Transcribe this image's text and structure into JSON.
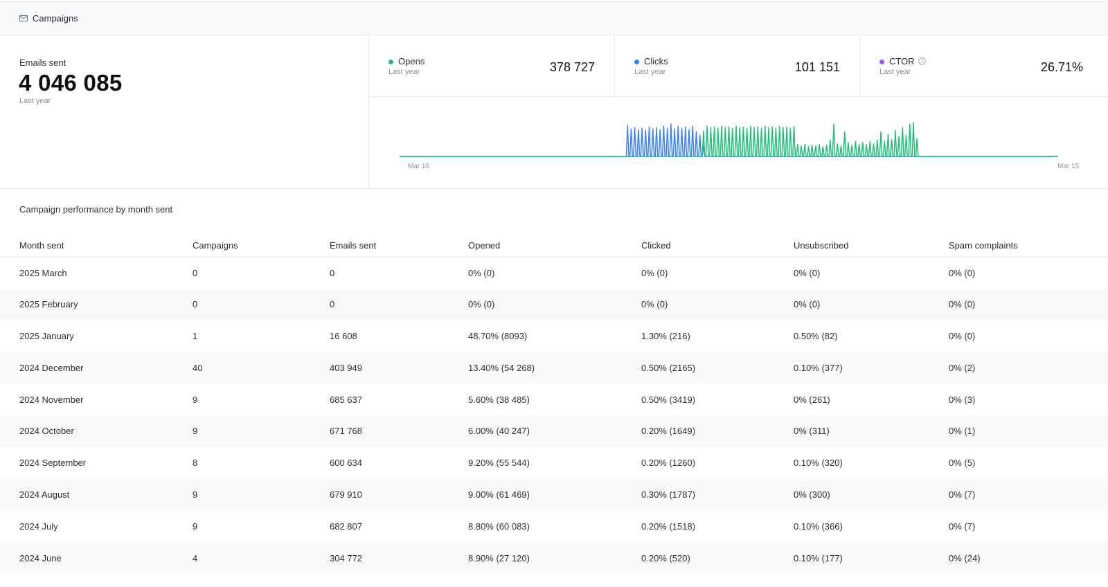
{
  "header": {
    "title": "Campaigns",
    "icon": "mail-icon"
  },
  "emails_sent": {
    "label": "Emails sent",
    "value": "4 046 085",
    "period": "Last year"
  },
  "metrics": [
    {
      "name": "Opens",
      "period": "Last year",
      "value": "378 727",
      "color": "#22c07a"
    },
    {
      "name": "Clicks",
      "period": "Last year",
      "value": "101 151",
      "color": "#3b82f6"
    },
    {
      "name": "CTOR",
      "period": "Last year",
      "value": "26.71%",
      "color": "#a855f7",
      "icon": "info-icon"
    }
  ],
  "chart_data": {
    "type": "line",
    "x_start_label": "Mar 16",
    "x_end_label": "Mar 15",
    "points_per_series": 365,
    "series": [
      {
        "name": "Clicks",
        "color": "#3b82f6",
        "spikes": [
          [
            126,
            0.88
          ],
          [
            128,
            0.78
          ],
          [
            130,
            0.82
          ],
          [
            132,
            0.76
          ],
          [
            134,
            0.8
          ],
          [
            136,
            0.74
          ],
          [
            138,
            0.84
          ],
          [
            140,
            0.78
          ],
          [
            142,
            0.82
          ],
          [
            144,
            0.76
          ],
          [
            146,
            0.86
          ],
          [
            148,
            0.8
          ],
          [
            150,
            0.92
          ],
          [
            152,
            0.78
          ],
          [
            154,
            0.86
          ],
          [
            156,
            0.8
          ],
          [
            158,
            0.84
          ],
          [
            160,
            0.76
          ],
          [
            162,
            0.86
          ],
          [
            164,
            0.7
          ],
          [
            166,
            0.6
          ],
          [
            168,
            0.3
          ]
        ]
      },
      {
        "name": "Opens",
        "color": "#22c07a",
        "spikes": [
          [
            168,
            0.72
          ],
          [
            170,
            0.86
          ],
          [
            172,
            0.82
          ],
          [
            174,
            0.84
          ],
          [
            176,
            0.8
          ],
          [
            178,
            0.86
          ],
          [
            180,
            0.82
          ],
          [
            182,
            0.84
          ],
          [
            184,
            0.8
          ],
          [
            186,
            0.86
          ],
          [
            188,
            0.82
          ],
          [
            190,
            0.84
          ],
          [
            192,
            0.8
          ],
          [
            194,
            0.86
          ],
          [
            196,
            0.82
          ],
          [
            198,
            0.84
          ],
          [
            200,
            0.8
          ],
          [
            202,
            0.86
          ],
          [
            204,
            0.82
          ],
          [
            206,
            0.84
          ],
          [
            208,
            0.8
          ],
          [
            210,
            0.86
          ],
          [
            212,
            0.82
          ],
          [
            214,
            0.84
          ],
          [
            216,
            0.8
          ],
          [
            218,
            0.86
          ],
          [
            220,
            0.34
          ],
          [
            222,
            0.3
          ],
          [
            224,
            0.34
          ],
          [
            226,
            0.28
          ],
          [
            228,
            0.32
          ],
          [
            230,
            0.3
          ],
          [
            232,
            0.34
          ],
          [
            234,
            0.28
          ],
          [
            236,
            0.32
          ],
          [
            238,
            0.46
          ],
          [
            240,
            0.92
          ],
          [
            242,
            0.36
          ],
          [
            244,
            0.3
          ],
          [
            246,
            0.7
          ],
          [
            248,
            0.4
          ],
          [
            250,
            0.32
          ],
          [
            252,
            0.44
          ],
          [
            254,
            0.34
          ],
          [
            256,
            0.4
          ],
          [
            258,
            0.34
          ],
          [
            260,
            0.42
          ],
          [
            262,
            0.36
          ],
          [
            264,
            0.46
          ],
          [
            266,
            0.7
          ],
          [
            268,
            0.44
          ],
          [
            270,
            0.62
          ],
          [
            272,
            0.48
          ],
          [
            274,
            0.74
          ],
          [
            276,
            0.56
          ],
          [
            278,
            0.82
          ],
          [
            280,
            0.6
          ],
          [
            282,
            0.92
          ],
          [
            284,
            0.96
          ],
          [
            286,
            0.5
          ]
        ]
      }
    ]
  },
  "table": {
    "title": "Campaign performance by month sent",
    "columns": [
      "Month sent",
      "Campaigns",
      "Emails sent",
      "Opened",
      "Clicked",
      "Unsubscribed",
      "Spam complaints"
    ],
    "rows": [
      [
        "2025 March",
        "0",
        "0",
        "0% (0)",
        "0% (0)",
        "0% (0)",
        "0% (0)"
      ],
      [
        "2025 February",
        "0",
        "0",
        "0% (0)",
        "0% (0)",
        "0% (0)",
        "0% (0)"
      ],
      [
        "2025 January",
        "1",
        "16 608",
        "48.70% (8093)",
        "1.30% (216)",
        "0.50% (82)",
        "0% (0)"
      ],
      [
        "2024 December",
        "40",
        "403 949",
        "13.40% (54 268)",
        "0.50% (2165)",
        "0.10% (377)",
        "0% (2)"
      ],
      [
        "2024 November",
        "9",
        "685 637",
        "5.60% (38 485)",
        "0.50% (3419)",
        "0% (261)",
        "0% (3)"
      ],
      [
        "2024 October",
        "9",
        "671 768",
        "6.00% (40 247)",
        "0.20% (1649)",
        "0% (311)",
        "0% (1)"
      ],
      [
        "2024 September",
        "8",
        "600 634",
        "9.20% (55 544)",
        "0.20% (1260)",
        "0.10% (320)",
        "0% (5)"
      ],
      [
        "2024 August",
        "9",
        "679 910",
        "9.00% (61 469)",
        "0.30% (1787)",
        "0% (300)",
        "0% (7)"
      ],
      [
        "2024 July",
        "9",
        "682 807",
        "8.80% (60 083)",
        "0.20% (1518)",
        "0.10% (366)",
        "0% (7)"
      ],
      [
        "2024 June",
        "4",
        "304 772",
        "8.90% (27 120)",
        "0.20% (520)",
        "0.10% (177)",
        "0% (24)"
      ]
    ]
  }
}
